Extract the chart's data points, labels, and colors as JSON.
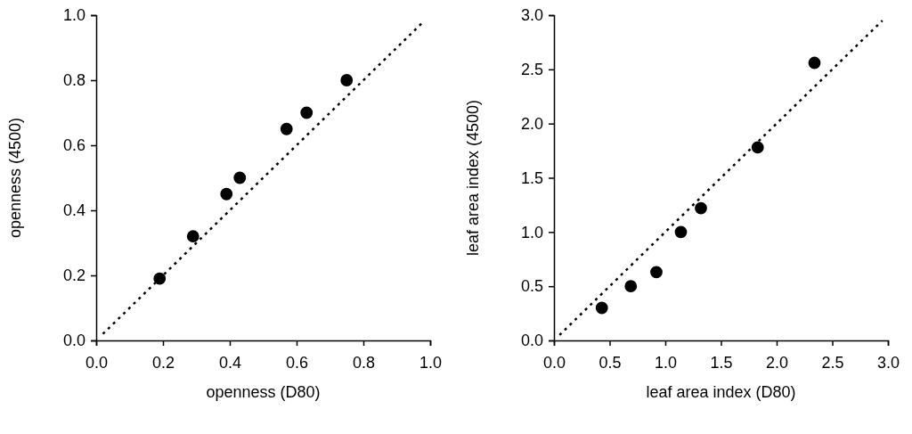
{
  "chart_data": [
    {
      "type": "scatter",
      "xlabel": "openness (D80)",
      "ylabel": "openness (4500)",
      "xlim": [
        0,
        1
      ],
      "ylim": [
        0,
        1
      ],
      "xticks": [
        {
          "value": 0,
          "label": "0.0"
        },
        0.2,
        0.4,
        0.6,
        0.8,
        {
          "value": 1,
          "label": "1.0"
        }
      ],
      "yticks": [
        {
          "value": 0,
          "label": "0.0"
        },
        0.2,
        0.4,
        0.6,
        0.8,
        {
          "value": 1,
          "label": "1.0"
        }
      ],
      "grid": false,
      "marker": "circle",
      "series": [
        {
          "color": "#000000",
          "x": [
            0.19,
            0.29,
            0.39,
            0.43,
            0.57,
            0.63,
            0.75
          ],
          "values": [
            0.19,
            0.32,
            0.45,
            0.5,
            0.65,
            0.7,
            0.8
          ]
        },
        {
          "type": "line",
          "color": "#000000",
          "line_style": "dotted",
          "marker": "none",
          "x": [
            0.02,
            0.98
          ],
          "values": [
            0.02,
            0.98
          ]
        }
      ]
    },
    {
      "type": "scatter",
      "xlabel": "leaf area index (D80)",
      "ylabel": "leaf area index (4500)",
      "xlim": [
        0,
        3
      ],
      "ylim": [
        0,
        3
      ],
      "xticks": [
        {
          "value": 0,
          "label": "0.0"
        },
        0.5,
        {
          "value": 1,
          "label": "1.0"
        },
        1.5,
        {
          "value": 2,
          "label": "2.0"
        },
        2.5,
        {
          "value": 3,
          "label": "3.0"
        }
      ],
      "yticks": [
        {
          "value": 0,
          "label": "0.0"
        },
        0.5,
        {
          "value": 1,
          "label": "1.0"
        },
        1.5,
        {
          "value": 2,
          "label": "2.0"
        },
        2.5,
        {
          "value": 3,
          "label": "3.0"
        }
      ],
      "grid": false,
      "marker": "circle",
      "series": [
        {
          "color": "#000000",
          "x": [
            0.43,
            0.69,
            0.92,
            1.14,
            1.32,
            1.83,
            2.34
          ],
          "values": [
            0.3,
            0.5,
            0.63,
            1.0,
            1.22,
            1.78,
            2.56
          ]
        },
        {
          "type": "line",
          "color": "#000000",
          "line_style": "dotted",
          "marker": "none",
          "x": [
            0.05,
            2.95
          ],
          "values": [
            0.05,
            2.95
          ]
        }
      ]
    }
  ]
}
